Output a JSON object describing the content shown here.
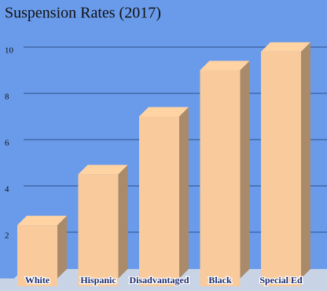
{
  "chart_data": {
    "type": "bar3d",
    "title": "Suspension Rates (2017)",
    "categories": [
      "White",
      "Hispanic",
      "Disadvantaged",
      "Black",
      "Special Ed"
    ],
    "values": [
      2.3,
      4.5,
      7.0,
      9.0,
      9.8
    ],
    "color": "#f9cb9c",
    "ylim": [
      0,
      11
    ],
    "yticks": [
      2,
      4,
      6,
      8,
      10
    ],
    "grid": true
  }
}
